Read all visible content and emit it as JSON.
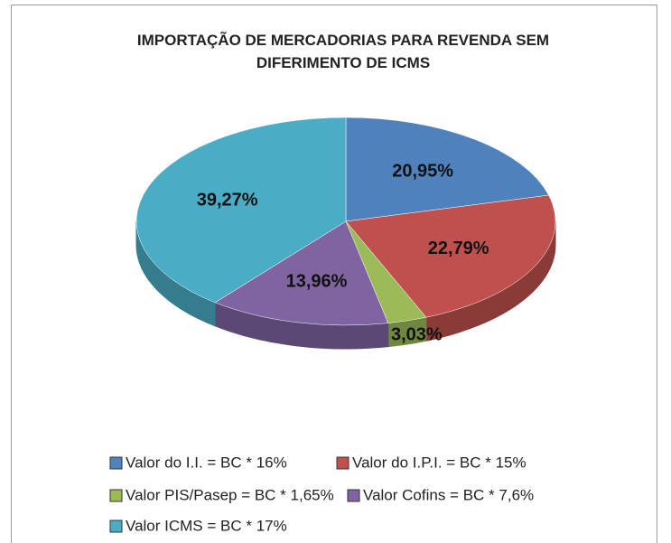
{
  "chart_data": {
    "type": "pie",
    "title": "IMPORTAÇÃO DE MERCADORIAS PARA REVENDA SEM DIFERIMENTO DE ICMS",
    "categories": [
      "Valor do I.I. = BC * 16%",
      "Valor do I.P.I. = BC * 15%",
      "Valor PIS/Pasep = BC * 1,65%",
      "Valor Cofins = BC * 7,6%",
      "Valor ICMS = BC * 17%"
    ],
    "values": [
      20.95,
      22.79,
      3.03,
      13.96,
      39.27
    ],
    "value_labels": [
      "20,95%",
      "22,79%",
      "3,03%",
      "13,96%",
      "39,27%"
    ],
    "colors": [
      "#4f81bd",
      "#c0504d",
      "#9bbb59",
      "#8064a2",
      "#4bacc6"
    ],
    "legend": "bottom"
  }
}
